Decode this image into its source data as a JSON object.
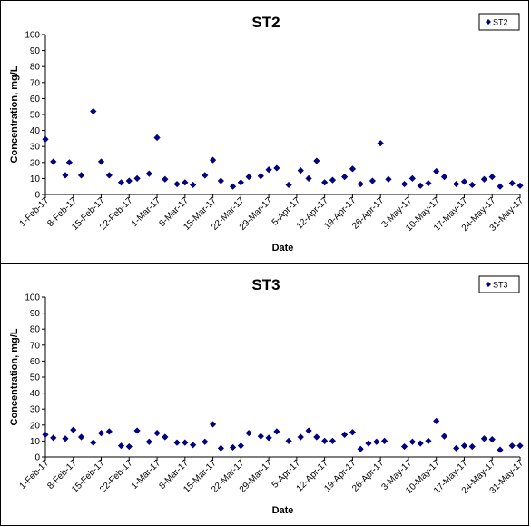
{
  "chart_data": [
    {
      "type": "scatter",
      "title": "ST2",
      "xlabel": "Date",
      "ylabel": "Concentration, mg/L",
      "ylim": [
        0,
        100
      ],
      "yticks": [
        "0",
        "10",
        "20",
        "30",
        "40",
        "50",
        "60",
        "70",
        "80",
        "90",
        "100"
      ],
      "xlim": [
        "1-Feb-17",
        "31-May-17"
      ],
      "xtick_labels": [
        "1-Feb-17",
        "8-Feb-17",
        "15-Feb-17",
        "22-Feb-17",
        "1-Mar-17",
        "8-Mar-17",
        "15-Mar-17",
        "22-Mar-17",
        "29-Mar-17",
        "5-Apr-17",
        "12-Apr-17",
        "19-Apr-17",
        "26-Apr-17",
        "3-May-17",
        "10-May-17",
        "17-May-17",
        "24-May-17",
        "31-May-17"
      ],
      "grid": false,
      "legend_position": "top-right",
      "marker_color": "#000080",
      "series": [
        {
          "name": "ST2",
          "points": [
            [
              "1-Feb-17",
              34.5
            ],
            [
              "3-Feb-17",
              20.5
            ],
            [
              "6-Feb-17",
              12
            ],
            [
              "7-Feb-17",
              20
            ],
            [
              "10-Feb-17",
              12
            ],
            [
              "13-Feb-17",
              52
            ],
            [
              "15-Feb-17",
              20.5
            ],
            [
              "17-Feb-17",
              12
            ],
            [
              "20-Feb-17",
              7.5
            ],
            [
              "22-Feb-17",
              8.5
            ],
            [
              "24-Feb-17",
              10
            ],
            [
              "27-Feb-17",
              13
            ],
            [
              "1-Mar-17",
              35.5
            ],
            [
              "3-Mar-17",
              9.5
            ],
            [
              "6-Mar-17",
              6.5
            ],
            [
              "8-Mar-17",
              7.5
            ],
            [
              "10-Mar-17",
              6
            ],
            [
              "13-Mar-17",
              12
            ],
            [
              "15-Mar-17",
              21.5
            ],
            [
              "17-Mar-17",
              8.5
            ],
            [
              "20-Mar-17",
              5
            ],
            [
              "22-Mar-17",
              7.5
            ],
            [
              "24-Mar-17",
              11
            ],
            [
              "27-Mar-17",
              11.5
            ],
            [
              "29-Mar-17",
              15.5
            ],
            [
              "31-Mar-17",
              16.5
            ],
            [
              "3-Apr-17",
              6
            ],
            [
              "6-Apr-17",
              15
            ],
            [
              "8-Apr-17",
              10
            ],
            [
              "10-Apr-17",
              21
            ],
            [
              "12-Apr-17",
              7.5
            ],
            [
              "14-Apr-17",
              9
            ],
            [
              "17-Apr-17",
              11
            ],
            [
              "19-Apr-17",
              16
            ],
            [
              "21-Apr-17",
              6.5
            ],
            [
              "24-Apr-17",
              8.5
            ],
            [
              "26-Apr-17",
              32
            ],
            [
              "28-Apr-17",
              9.5
            ],
            [
              "2-May-17",
              6.5
            ],
            [
              "4-May-17",
              10
            ],
            [
              "6-May-17",
              5.5
            ],
            [
              "8-May-17",
              7
            ],
            [
              "10-May-17",
              14.5
            ],
            [
              "12-May-17",
              11
            ],
            [
              "15-May-17",
              6.5
            ],
            [
              "17-May-17",
              8
            ],
            [
              "19-May-17",
              6
            ],
            [
              "22-May-17",
              9.5
            ],
            [
              "24-May-17",
              11
            ],
            [
              "26-May-17",
              5
            ],
            [
              "29-May-17",
              7
            ],
            [
              "31-May-17",
              5.5
            ]
          ]
        }
      ]
    },
    {
      "type": "scatter",
      "title": "ST3",
      "xlabel": "Date",
      "ylabel": "Concentration, mg/L",
      "ylim": [
        0,
        100
      ],
      "yticks": [
        "0",
        "10",
        "20",
        "30",
        "40",
        "50",
        "60",
        "70",
        "80",
        "90",
        "100"
      ],
      "xlim": [
        "1-Feb-17",
        "31-May-17"
      ],
      "xtick_labels": [
        "1-Feb-17",
        "8-Feb-17",
        "15-Feb-17",
        "22-Feb-17",
        "1-Mar-17",
        "8-Mar-17",
        "15-Mar-17",
        "22-Mar-17",
        "29-Mar-17",
        "5-Apr-17",
        "12-Apr-17",
        "19-Apr-17",
        "26-Apr-17",
        "3-May-17",
        "10-May-17",
        "17-May-17",
        "24-May-17",
        "31-May-17"
      ],
      "grid": false,
      "legend_position": "top-right",
      "marker_color": "#000080",
      "series": [
        {
          "name": "ST3",
          "points": [
            [
              "1-Feb-17",
              14
            ],
            [
              "3-Feb-17",
              12
            ],
            [
              "6-Feb-17",
              11.5
            ],
            [
              "8-Feb-17",
              17
            ],
            [
              "10-Feb-17",
              12.5
            ],
            [
              "13-Feb-17",
              9
            ],
            [
              "15-Feb-17",
              15
            ],
            [
              "17-Feb-17",
              16
            ],
            [
              "20-Feb-17",
              7
            ],
            [
              "22-Feb-17",
              6.5
            ],
            [
              "24-Feb-17",
              16.5
            ],
            [
              "27-Feb-17",
              9.5
            ],
            [
              "1-Mar-17",
              15
            ],
            [
              "3-Mar-17",
              12.5
            ],
            [
              "6-Mar-17",
              9
            ],
            [
              "8-Mar-17",
              9
            ],
            [
              "10-Mar-17",
              7.5
            ],
            [
              "13-Mar-17",
              9.5
            ],
            [
              "15-Mar-17",
              20.5
            ],
            [
              "17-Mar-17",
              5.5
            ],
            [
              "20-Mar-17",
              6
            ],
            [
              "22-Mar-17",
              7
            ],
            [
              "24-Mar-17",
              15
            ],
            [
              "27-Mar-17",
              13
            ],
            [
              "29-Mar-17",
              12
            ],
            [
              "31-Mar-17",
              16
            ],
            [
              "3-Apr-17",
              10
            ],
            [
              "6-Apr-17",
              12.5
            ],
            [
              "8-Apr-17",
              16.5
            ],
            [
              "10-Apr-17",
              12.5
            ],
            [
              "12-Apr-17",
              10
            ],
            [
              "14-Apr-17",
              10
            ],
            [
              "17-Apr-17",
              14
            ],
            [
              "19-Apr-17",
              15.5
            ],
            [
              "21-Apr-17",
              5
            ],
            [
              "23-Apr-17",
              8.5
            ],
            [
              "25-Apr-17",
              9.5
            ],
            [
              "27-Apr-17",
              10
            ],
            [
              "2-May-17",
              6.5
            ],
            [
              "4-May-17",
              9.5
            ],
            [
              "6-May-17",
              8.5
            ],
            [
              "8-May-17",
              10
            ],
            [
              "10-May-17",
              22.5
            ],
            [
              "12-May-17",
              13
            ],
            [
              "15-May-17",
              5.5
            ],
            [
              "17-May-17",
              7
            ],
            [
              "19-May-17",
              6.5
            ],
            [
              "22-May-17",
              11.5
            ],
            [
              "24-May-17",
              11
            ],
            [
              "26-May-17",
              4.5
            ],
            [
              "29-May-17",
              7
            ],
            [
              "31-May-17",
              7
            ]
          ]
        }
      ]
    }
  ]
}
